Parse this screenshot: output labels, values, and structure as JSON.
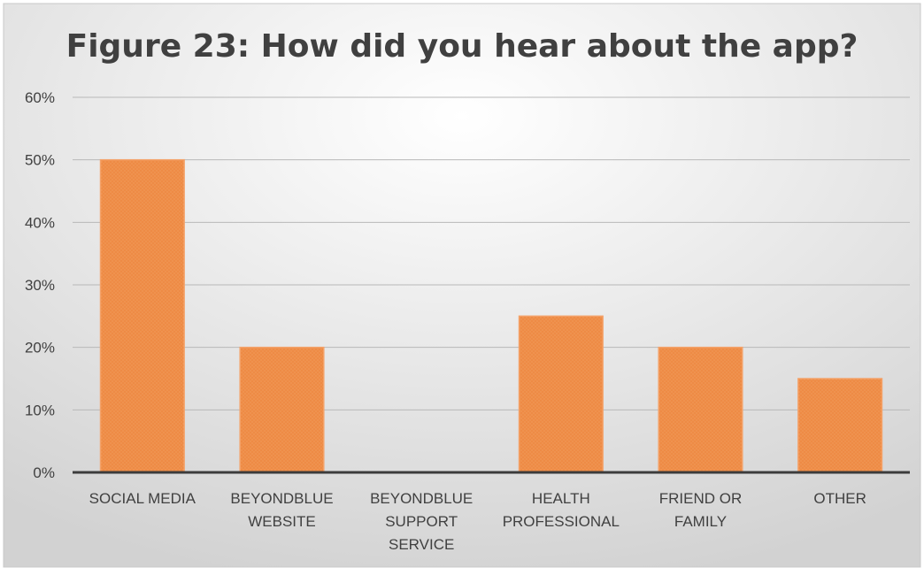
{
  "chart_data": {
    "type": "bar",
    "title": "Figure 23: How did you hear about the app?",
    "xlabel": "",
    "ylabel": "",
    "categories": [
      [
        "SOCIAL MEDIA"
      ],
      [
        "BEYONDBLUE",
        "WEBSITE"
      ],
      [
        "BEYONDBLUE",
        "SUPPORT",
        "SERVICE"
      ],
      [
        "HEALTH",
        "PROFESSIONAL"
      ],
      [
        "FRIEND OR",
        "FAMILY"
      ],
      [
        "OTHER"
      ]
    ],
    "values": [
      50,
      20,
      0,
      25,
      20,
      15
    ],
    "ylim": [
      0,
      60
    ],
    "yticks": [
      "0%",
      "10%",
      "20%",
      "30%",
      "40%",
      "50%",
      "60%"
    ],
    "grid": true,
    "legend": "none",
    "colors": {
      "bar_fill": "#EE8B45",
      "bar_stroke": "#F4A269",
      "background_light": "#FFFFFF",
      "background_dark": "#D2D2D2",
      "gridline": "#B8B8B8",
      "axis": "#3C3C3C",
      "text": "#404040"
    }
  }
}
